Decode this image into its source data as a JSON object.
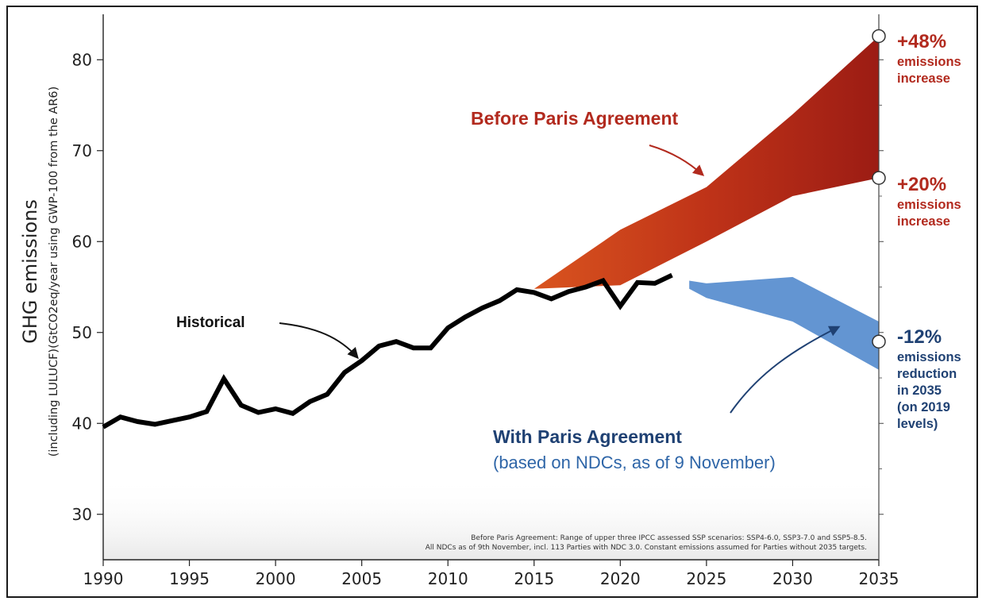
{
  "chart_data": {
    "type": "line",
    "title": "",
    "ylabel": "GHG emissions",
    "ylabel_sub": "(including LULUCF)(GtCO2eq/year using GWP-100 from the AR6)",
    "xlim": [
      1990,
      2035
    ],
    "ylim": [
      25,
      85
    ],
    "x_ticks": [
      "1990",
      "1995",
      "2000",
      "2005",
      "2010",
      "2015",
      "2020",
      "2025",
      "2030",
      "2035"
    ],
    "y_ticks": [
      "30",
      "40",
      "50",
      "60",
      "70",
      "80"
    ],
    "series": [
      {
        "name": "Historical",
        "x": [
          1990,
          1991,
          1992,
          1993,
          1994,
          1995,
          1996,
          1997,
          1998,
          1999,
          2000,
          2001,
          2002,
          2003,
          2004,
          2005,
          2006,
          2007,
          2008,
          2009,
          2010,
          2011,
          2012,
          2013,
          2014,
          2015,
          2016,
          2017,
          2018,
          2019,
          2020,
          2021,
          2022,
          2023
        ],
        "y": [
          39.6,
          40.7,
          40.2,
          39.9,
          40.3,
          40.7,
          41.3,
          44.9,
          42.0,
          41.2,
          41.6,
          41.1,
          42.4,
          43.2,
          45.6,
          46.9,
          48.5,
          49.0,
          48.3,
          48.3,
          50.5,
          51.7,
          52.7,
          53.5,
          54.7,
          54.4,
          53.7,
          54.5,
          55.0,
          55.7,
          52.9,
          55.5,
          55.4,
          56.3
        ]
      }
    ],
    "bands": [
      {
        "name": "Before Paris Agreement",
        "x": [
          2015,
          2020,
          2025,
          2030,
          2035
        ],
        "upper": [
          54.8,
          61.3,
          66.0,
          74.0,
          82.6
        ],
        "lower": [
          54.8,
          55.2,
          60.0,
          65.0,
          67.0
        ]
      },
      {
        "name": "With Paris Agreement",
        "x": [
          2024,
          2025,
          2030,
          2035
        ],
        "upper": [
          55.7,
          55.4,
          56.1,
          51.2
        ],
        "lower": [
          54.8,
          53.8,
          51.2,
          45.9
        ]
      }
    ],
    "labels": {
      "historical": "Historical",
      "before_paris": "Before Paris Agreement",
      "with_paris_line1": "With Paris Agreement",
      "with_paris_line2": "(based on NDCs, as of 9 November)"
    },
    "end_markers": [
      {
        "value": 82.6,
        "pct": "+48%",
        "lines": [
          "emissions",
          "increase"
        ]
      },
      {
        "value": 67.0,
        "pct": "+20%",
        "lines": [
          "emissions",
          "increase"
        ]
      },
      {
        "value": 49.0,
        "pct": "-12%",
        "lines": [
          "emissions",
          "reduction",
          "in 2035",
          "(on 2019",
          "levels)"
        ]
      }
    ],
    "footnote": [
      "Before Paris Agreement: Range of upper three IPCC assessed SSP scenarios: SSP4-6.0, SSP3-7.0 and SSP5-8.5.",
      "All NDCs as of 9th November, incl. 113 Parties with NDC 3.0. Constant emissions assumed for Parties without 2035 targets."
    ],
    "colors": {
      "historical": "#000000",
      "before_paris_dark": "#9c1c14",
      "before_paris_light": "#cf4a1f",
      "with_paris": "#5b8fd0",
      "red_text": "#b22a1e",
      "blue_text_dark": "#1f4173",
      "blue_text": "#2f66a8"
    }
  }
}
